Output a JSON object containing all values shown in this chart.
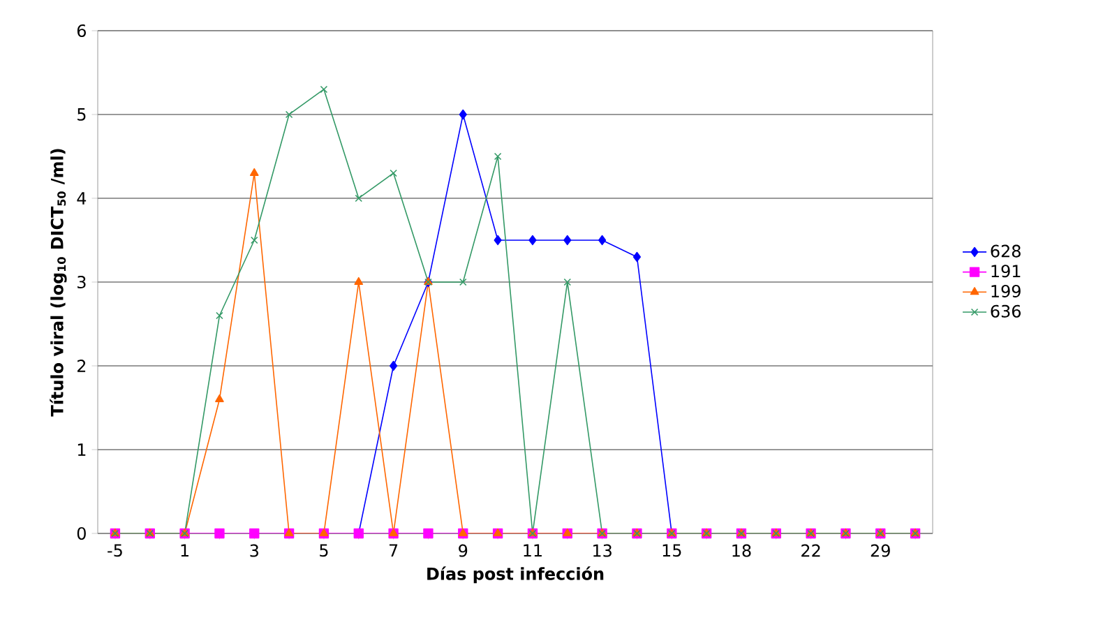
{
  "chart_data": {
    "type": "line",
    "xlabel": "Días post infección",
    "ylabel": "Título viral (log$_{10}$ DICT$_{50}$ /ml)",
    "categories": [
      "-5",
      null,
      "1",
      null,
      "3",
      null,
      "5",
      null,
      "7",
      null,
      "9",
      null,
      "11",
      null,
      "13",
      null,
      "15",
      null,
      "18",
      null,
      "22",
      null,
      "29",
      null
    ],
    "series": [
      {
        "name": "628",
        "color": "#0000ff",
        "marker": "diamond",
        "values": [
          null,
          null,
          null,
          null,
          null,
          null,
          null,
          0,
          2,
          3,
          5,
          3.5,
          3.5,
          3.5,
          3.5,
          3.3,
          0,
          null,
          null,
          null,
          null,
          null,
          null,
          null
        ]
      },
      {
        "name": "191",
        "color": "#ff00ff",
        "marker": "square",
        "values": [
          0,
          0,
          0,
          0,
          0,
          0,
          0,
          0,
          0,
          0,
          0,
          0,
          0,
          0,
          0,
          0,
          0,
          0,
          0,
          0,
          0,
          0,
          0,
          0
        ]
      },
      {
        "name": "199",
        "color": "#ff6600",
        "marker": "triangle",
        "values": [
          0,
          0,
          0,
          1.6,
          4.3,
          0,
          0,
          3,
          0,
          3,
          0,
          0,
          0,
          0,
          0,
          0,
          0,
          0,
          0,
          0,
          0,
          0,
          0,
          0
        ]
      },
      {
        "name": "636",
        "color": "#339966",
        "marker": "cross",
        "values": [
          0,
          0,
          0,
          2.6,
          3.5,
          5,
          5.3,
          4,
          4.3,
          3,
          3,
          4.5,
          0,
          3,
          0,
          0,
          0,
          0,
          0,
          0,
          0,
          0,
          0,
          0
        ]
      }
    ],
    "ylim": [
      0,
      6
    ],
    "yticks": [
      0,
      1,
      2,
      3,
      4,
      5,
      6
    ],
    "grid": "y",
    "legend": "right",
    "line_style": "solid"
  }
}
